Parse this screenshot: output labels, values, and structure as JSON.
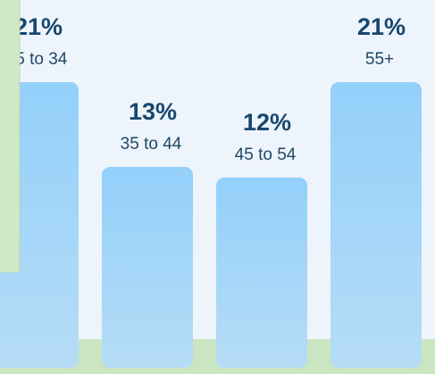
{
  "chart_data": {
    "type": "bar",
    "categories": [
      "25 to 34",
      "35 to 44",
      "45 to 54",
      "55+"
    ],
    "values": [
      21,
      13,
      12,
      21
    ],
    "value_labels": [
      "21%",
      "13%",
      "12%",
      "21%"
    ],
    "color": "#9dd4f8"
  }
}
